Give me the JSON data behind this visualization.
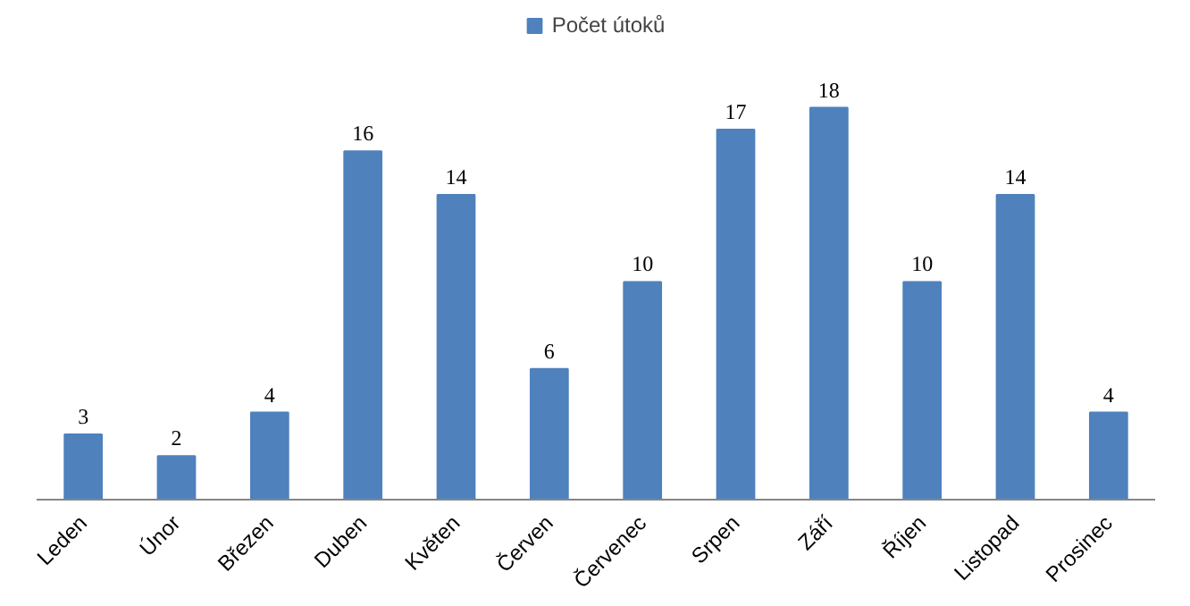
{
  "chart_data": {
    "type": "bar",
    "categories": [
      "Leden",
      "Únor",
      "Březen",
      "Duben",
      "Květen",
      "Červen",
      "Červenec",
      "Srpen",
      "Září",
      "Říjen",
      "Listopad",
      "Prosinec"
    ],
    "series": [
      {
        "name": "Počet útoků",
        "color": "#4f81bd",
        "values": [
          3,
          2,
          4,
          16,
          14,
          6,
          10,
          17,
          18,
          10,
          14,
          4
        ]
      }
    ],
    "data_labels": true,
    "legend": "top",
    "grid": false
  }
}
